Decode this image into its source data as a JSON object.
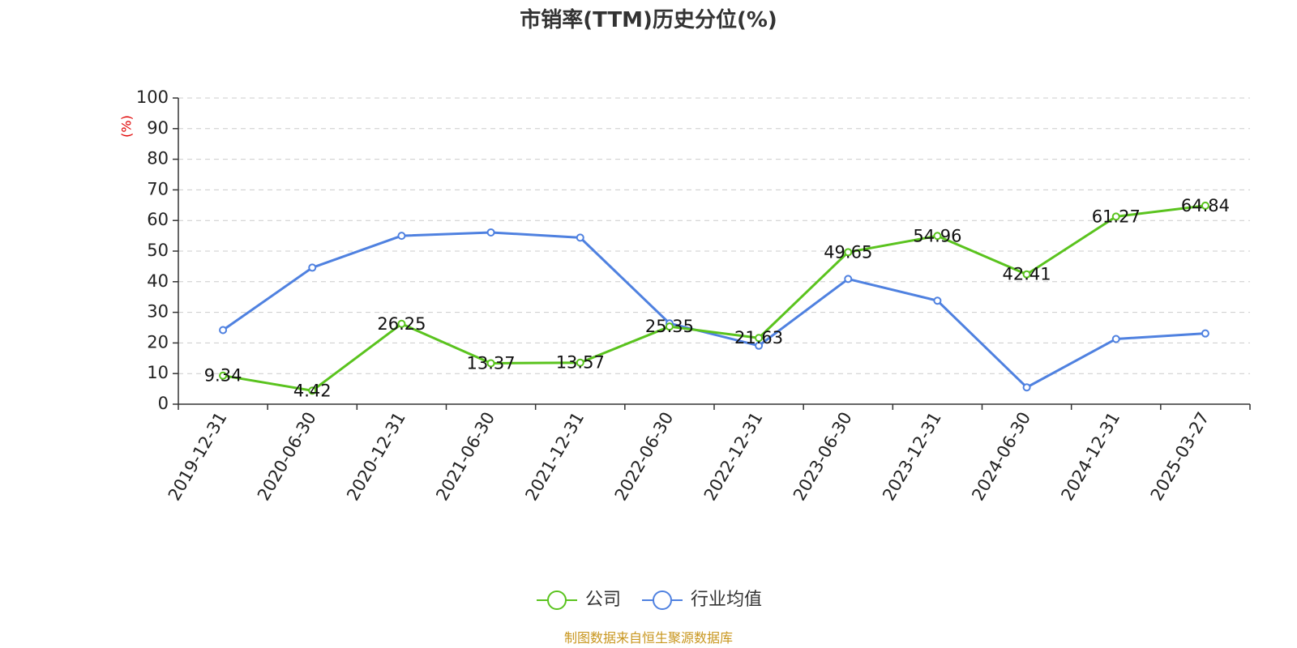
{
  "chart_data": {
    "type": "line",
    "title": "市销率(TTM)历史分位(%)",
    "ylabel": "(%)",
    "xlabel": "",
    "ylim": [
      0,
      100
    ],
    "yticks": [
      0,
      10,
      20,
      30,
      40,
      50,
      60,
      70,
      80,
      90,
      100
    ],
    "grid": "horizontal-dashed",
    "legend_placement": "bottom-center",
    "categories": [
      "2019-12-31",
      "2020-06-30",
      "2020-12-31",
      "2021-06-30",
      "2021-12-31",
      "2022-06-30",
      "2022-12-31",
      "2023-06-30",
      "2023-12-31",
      "2024-06-30",
      "2024-12-31",
      "2025-03-27"
    ],
    "series": [
      {
        "name": "公司",
        "color": "#5ac31e",
        "values": [
          9.34,
          4.42,
          26.25,
          13.37,
          13.57,
          25.35,
          21.63,
          49.65,
          54.96,
          42.41,
          61.27,
          64.84
        ],
        "labels": [
          "9.34",
          "4.42",
          "26.25",
          "13.37",
          "13.57",
          "25.35",
          "21.63",
          "49.65",
          "54.96",
          "42.41",
          "61.27",
          "64.84"
        ]
      },
      {
        "name": "行业均值",
        "color": "#4f81e0",
        "values": [
          24.2,
          44.6,
          55.0,
          56.1,
          54.4,
          26.4,
          19.1,
          40.9,
          33.8,
          5.5,
          21.3,
          23.1
        ]
      }
    ]
  },
  "footer": {
    "source": "制图数据来自恒生聚源数据库"
  }
}
